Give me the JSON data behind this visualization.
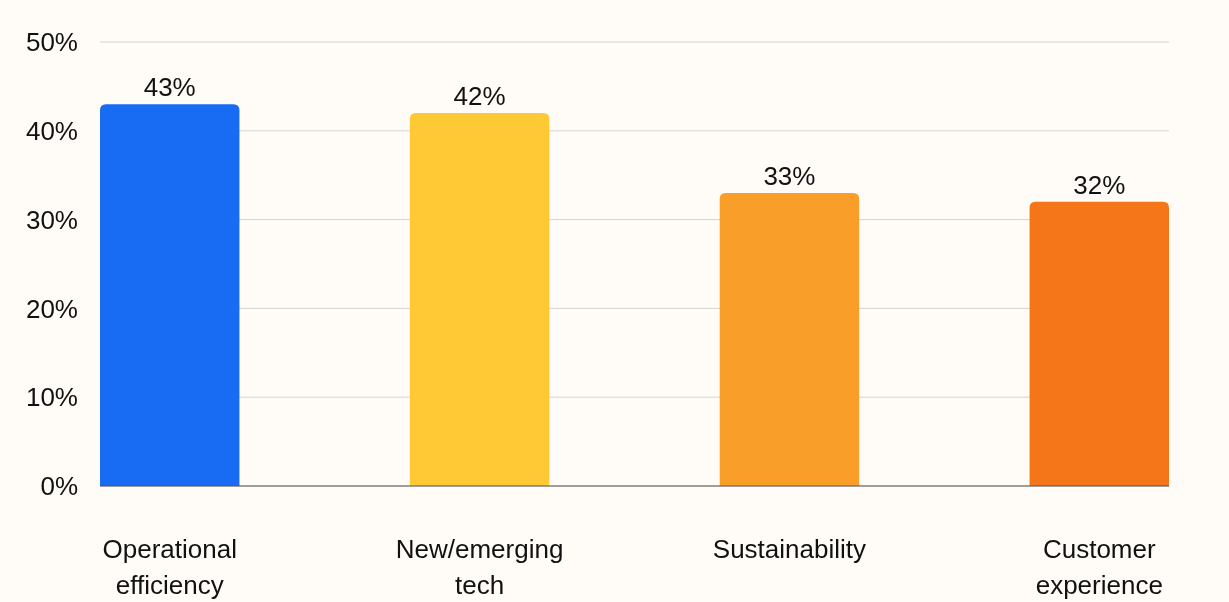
{
  "chart_data": {
    "type": "bar",
    "categories": [
      "Operational efficiency",
      "New/emerging tech",
      "Sustainability",
      "Customer experience"
    ],
    "values": [
      43,
      42,
      33,
      32
    ],
    "colors": [
      "#176cf3",
      "#ffc835",
      "#f99f29",
      "#f57519"
    ],
    "value_labels": [
      "43%",
      "42%",
      "33%",
      "32%"
    ],
    "ylim": [
      0,
      50
    ],
    "yticks": [
      {
        "value": 0,
        "label": "0%"
      },
      {
        "value": 10,
        "label": "10%"
      },
      {
        "value": 20,
        "label": "20%"
      },
      {
        "value": 30,
        "label": "30%"
      },
      {
        "value": 40,
        "label": "40%"
      },
      {
        "value": 50,
        "label": "50%"
      }
    ],
    "grid": "y"
  }
}
